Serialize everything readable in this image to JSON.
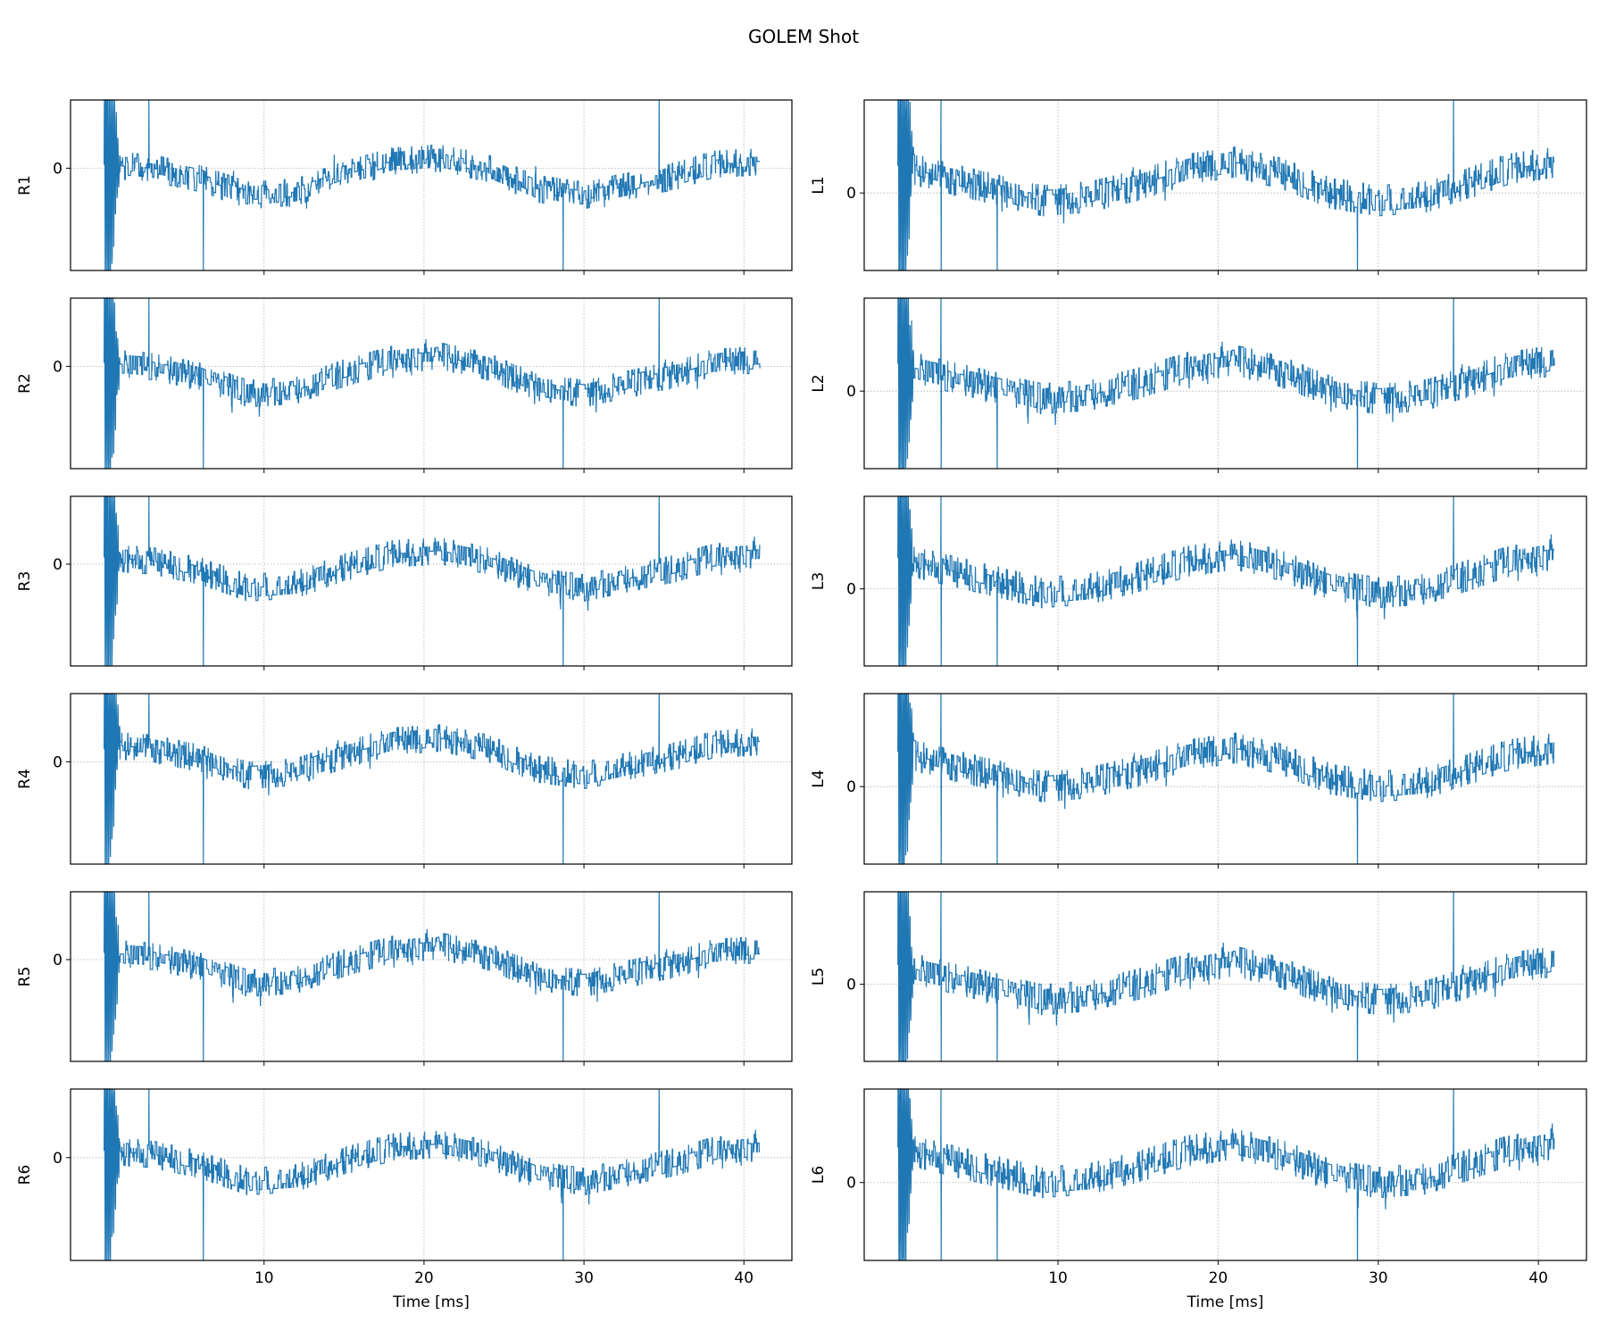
{
  "chart_data": {
    "type": "line",
    "title": "GOLEM Shot",
    "xlabel": "Time [ms]",
    "xlim": [
      -2.1,
      43.0
    ],
    "xticks": [
      10,
      20,
      30,
      40
    ],
    "yticks": [
      0
    ],
    "grid": true,
    "line_color": "#1f77b4",
    "columns": [
      {
        "side": "left",
        "ylim": [
          -1.5,
          1.0
        ],
        "trend": [
          [
            0,
            0.05
          ],
          [
            3,
            0.0
          ],
          [
            6,
            -0.15
          ],
          [
            9,
            -0.4
          ],
          [
            12,
            -0.35
          ],
          [
            15,
            -0.1
          ],
          [
            18,
            0.1
          ],
          [
            21,
            0.15
          ],
          [
            24,
            0.0
          ],
          [
            27,
            -0.3
          ],
          [
            30,
            -0.4
          ],
          [
            33,
            -0.25
          ],
          [
            36,
            -0.1
          ],
          [
            38,
            0.05
          ],
          [
            41,
            0.1
          ]
        ],
        "spike_times": [
          2.8,
          6.2,
          28.7,
          34.7
        ],
        "panels": [
          {
            "ylabel": "R1",
            "offset": 0.0
          },
          {
            "ylabel": "R2",
            "offset": 0.0
          },
          {
            "ylabel": "R3",
            "offset": 0.05
          },
          {
            "ylabel": "R4",
            "offset": 0.2
          },
          {
            "ylabel": "R5",
            "offset": 0.05
          },
          {
            "ylabel": "R6",
            "offset": 0.05
          }
        ]
      },
      {
        "side": "right",
        "ylim": [
          -1.0,
          1.2
        ],
        "trend": [
          [
            0,
            0.35
          ],
          [
            3,
            0.2
          ],
          [
            6,
            0.05
          ],
          [
            9,
            -0.1
          ],
          [
            12,
            -0.05
          ],
          [
            15,
            0.1
          ],
          [
            18,
            0.3
          ],
          [
            21,
            0.4
          ],
          [
            24,
            0.25
          ],
          [
            27,
            0.0
          ],
          [
            30,
            -0.1
          ],
          [
            33,
            -0.05
          ],
          [
            36,
            0.15
          ],
          [
            38,
            0.3
          ],
          [
            41,
            0.4
          ]
        ],
        "spike_times": [
          2.7,
          6.2,
          28.7,
          34.7
        ],
        "panels": [
          {
            "ylabel": "L1",
            "offset": 0.0
          },
          {
            "ylabel": "L2",
            "offset": 0.0
          },
          {
            "ylabel": "L3",
            "offset": 0.05
          },
          {
            "ylabel": "L4",
            "offset": 0.1
          },
          {
            "ylabel": "L5",
            "offset": -0.1
          },
          {
            "ylabel": "L6",
            "offset": 0.1
          }
        ]
      }
    ]
  }
}
